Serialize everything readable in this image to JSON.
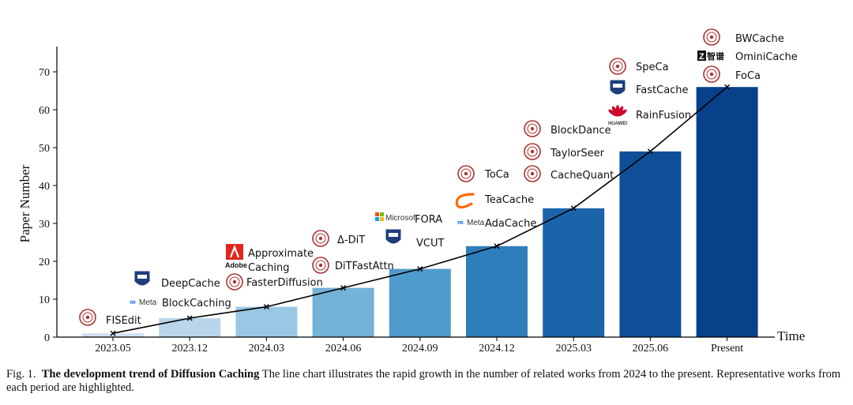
{
  "chart_data": {
    "type": "bar",
    "categories": [
      "2023.05",
      "2023.12",
      "2024.03",
      "2024.06",
      "2024.09",
      "2024.12",
      "2025.03",
      "2025.06",
      "Present"
    ],
    "values": [
      1,
      5,
      8,
      13,
      18,
      24,
      34,
      49,
      66
    ],
    "line_overlay": true,
    "ylabel": "Paper Number",
    "xlabel": "Time",
    "ylim": [
      0,
      75
    ],
    "yticks": [
      0,
      10,
      20,
      30,
      40,
      50,
      60,
      70
    ],
    "bar_colors": [
      "#cfe1f2",
      "#b8d5ea",
      "#9ac7e3",
      "#74b2d8",
      "#4f9bcb",
      "#2f7ebc",
      "#1c64a9",
      "#0f4f98",
      "#08418a"
    ],
    "annotations": [
      {
        "text": "FISEdit",
        "period": "2023.05",
        "logo": "university-seal"
      },
      {
        "text": "DeepCache",
        "period": "2023.12",
        "logo": "crest"
      },
      {
        "text": "BlockCaching",
        "period": "2023.12",
        "logo": "meta"
      },
      {
        "text": "Approximate",
        "period": "2024.03",
        "logo": "adobe"
      },
      {
        "text": "Caching",
        "period": "2024.03",
        "logo": "adobe"
      },
      {
        "text": "FasterDiffusion",
        "period": "2024.03",
        "logo": "university-seal"
      },
      {
        "text": "Δ-DiT",
        "period": "2024.06",
        "logo": "university-seal"
      },
      {
        "text": "DiTFastAttn",
        "period": "2024.06",
        "logo": "university-seal"
      },
      {
        "text": "FORA",
        "period": "2024.09",
        "logo": "microsoft"
      },
      {
        "text": "VCUT",
        "period": "2024.09",
        "logo": "crest"
      },
      {
        "text": "ToCa",
        "period": "2024.12",
        "logo": "university-seal"
      },
      {
        "text": "TeaCache",
        "period": "2024.12",
        "logo": "alibaba"
      },
      {
        "text": "AdaCache",
        "period": "2024.12",
        "logo": "meta"
      },
      {
        "text": "BlockDance",
        "period": "2025.03",
        "logo": "university-seal"
      },
      {
        "text": "TaylorSeer",
        "period": "2025.03",
        "logo": "university-seal"
      },
      {
        "text": "CacheQuant",
        "period": "2025.03",
        "logo": "university-seal"
      },
      {
        "text": "SpeCa",
        "period": "2025.06",
        "logo": "university-seal"
      },
      {
        "text": "FastCache",
        "period": "2025.06",
        "logo": "crest"
      },
      {
        "text": "RainFusion",
        "period": "2025.06",
        "logo": "huawei"
      },
      {
        "text": "BWCache",
        "period": "Present",
        "logo": "university-seal"
      },
      {
        "text": "OminiCache",
        "period": "Present",
        "logo": "zhipu"
      },
      {
        "text": "FoCa",
        "period": "Present",
        "logo": "university-seal"
      }
    ],
    "brand_texts": {
      "meta": "Meta",
      "microsoft": "Microsoft",
      "adobe": "Adobe",
      "huawei": "HUAWEI",
      "zhipu": "智谱"
    }
  },
  "caption": {
    "prefix": "Fig. 1.",
    "title": "The development trend of Diffusion Caching",
    "body": "The line chart illustrates the rapid growth in the number of related works from 2024 to the present. Representative works from each period are highlighted."
  }
}
